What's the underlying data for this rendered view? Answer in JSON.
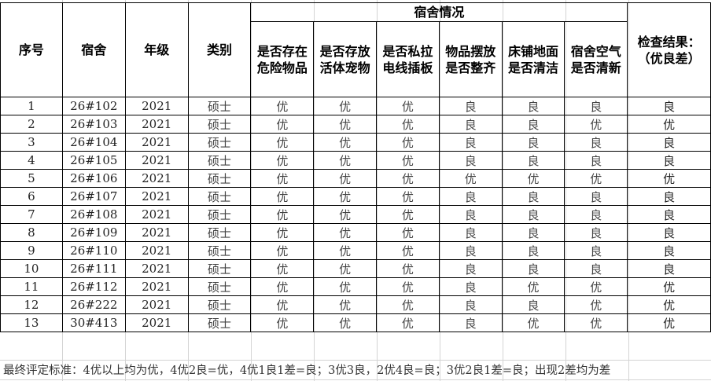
{
  "header": {
    "index": "序号",
    "dorm": "宿舍",
    "grade": "年级",
    "category": "类别",
    "group": "宿舍情况",
    "criteria": [
      "是否存在\n危险物品",
      "是否存放\n活体宠物",
      "是否私拉\n电线插板",
      "物品摆放\n是否整齐",
      "床铺地面\n是否清洁",
      "宿舍空气\n是否清新"
    ],
    "result": "检查结果：\n（优良差）"
  },
  "rows": [
    {
      "no": "1",
      "dorm": "26#102",
      "grade": "2021",
      "type": "硕士",
      "scores": [
        "优",
        "优",
        "优",
        "良",
        "良",
        "良"
      ],
      "result": "良"
    },
    {
      "no": "2",
      "dorm": "26#103",
      "grade": "2021",
      "type": "硕士",
      "scores": [
        "优",
        "优",
        "优",
        "良",
        "良",
        "优"
      ],
      "result": "优"
    },
    {
      "no": "3",
      "dorm": "26#104",
      "grade": "2021",
      "type": "硕士",
      "scores": [
        "优",
        "优",
        "优",
        "良",
        "良",
        "良"
      ],
      "result": "良"
    },
    {
      "no": "4",
      "dorm": "26#105",
      "grade": "2021",
      "type": "硕士",
      "scores": [
        "优",
        "优",
        "优",
        "良",
        "良",
        "良"
      ],
      "result": "良"
    },
    {
      "no": "5",
      "dorm": "26#106",
      "grade": "2021",
      "type": "硕士",
      "scores": [
        "优",
        "优",
        "优",
        "优",
        "优",
        "优"
      ],
      "result": "优"
    },
    {
      "no": "6",
      "dorm": "26#107",
      "grade": "2021",
      "type": "硕士",
      "scores": [
        "优",
        "优",
        "优",
        "良",
        "良",
        "良"
      ],
      "result": "良"
    },
    {
      "no": "7",
      "dorm": "26#108",
      "grade": "2021",
      "type": "硕士",
      "scores": [
        "优",
        "优",
        "优",
        "良",
        "良",
        "良"
      ],
      "result": "良"
    },
    {
      "no": "8",
      "dorm": "26#109",
      "grade": "2021",
      "type": "硕士",
      "scores": [
        "优",
        "优",
        "优",
        "良",
        "良",
        "良"
      ],
      "result": "良"
    },
    {
      "no": "9",
      "dorm": "26#110",
      "grade": "2021",
      "type": "硕士",
      "scores": [
        "优",
        "优",
        "优",
        "良",
        "良",
        "良"
      ],
      "result": "良"
    },
    {
      "no": "10",
      "dorm": "26#111",
      "grade": "2021",
      "type": "硕士",
      "scores": [
        "优",
        "优",
        "优",
        "良",
        "良",
        "良"
      ],
      "result": "良"
    },
    {
      "no": "11",
      "dorm": "26#112",
      "grade": "2021",
      "type": "硕士",
      "scores": [
        "优",
        "优",
        "优",
        "良",
        "优",
        "优"
      ],
      "result": "优"
    },
    {
      "no": "12",
      "dorm": "26#222",
      "grade": "2021",
      "type": "硕士",
      "scores": [
        "优",
        "优",
        "优",
        "良",
        "良",
        "优"
      ],
      "result": "优"
    },
    {
      "no": "13",
      "dorm": "30#413",
      "grade": "2021",
      "type": "硕士",
      "scores": [
        "优",
        "优",
        "优",
        "良",
        "优",
        "优"
      ],
      "result": "优"
    }
  ],
  "footer": "最终评定标准：4优以上均为优，4优2良=优，4优1良1差=良；3优3良，2优4良=良；3优2良1差=良；出现2差均为差"
}
